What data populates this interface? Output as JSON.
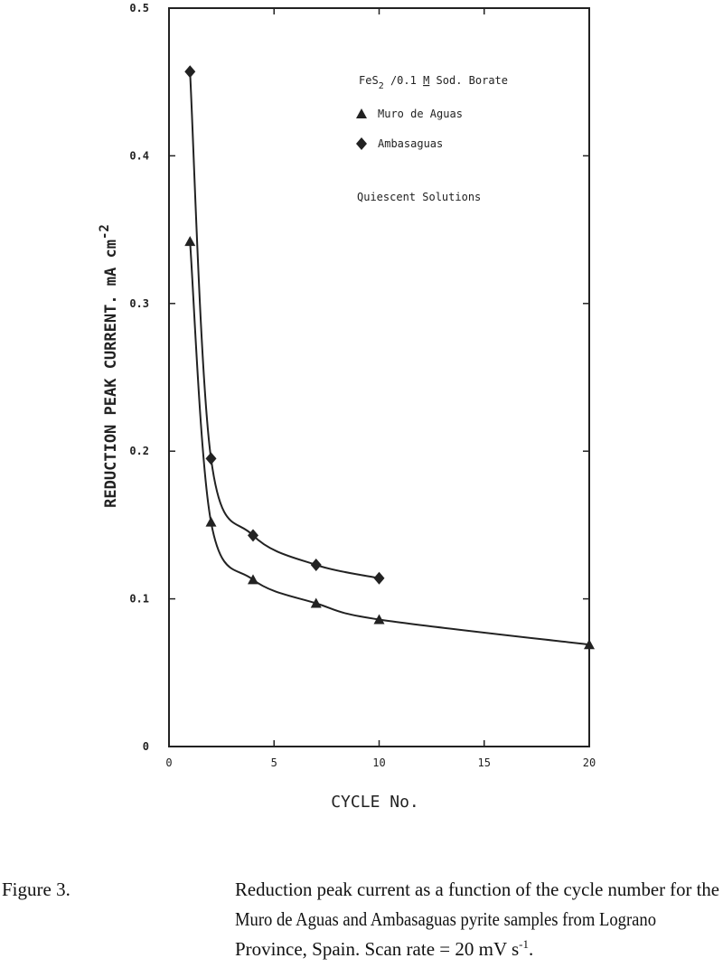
{
  "chart_data": {
    "type": "line",
    "x_label": "CYCLE No.",
    "y_label": "REDUCTION PEAK CURRENT. mA cm",
    "y_label_superscript": "-2",
    "legend_title_parts": [
      "FeS",
      "2",
      " /0.1 ",
      "M",
      " Sod. Borate"
    ],
    "annotation": "Quiescent Solutions",
    "xlim": [
      0,
      20
    ],
    "ylim": [
      0,
      0.5
    ],
    "xticks": [
      0,
      5,
      10,
      15,
      20
    ],
    "yticks": [
      0,
      0.1,
      0.2,
      0.3,
      0.4,
      0.5
    ],
    "series": [
      {
        "name": "Muro de Aguas",
        "marker": "triangle",
        "color": "#222222",
        "x": [
          1,
          2,
          4,
          7,
          10,
          20
        ],
        "values": [
          0.342,
          0.152,
          0.113,
          0.097,
          0.086,
          0.069
        ]
      },
      {
        "name": "Ambasaguas",
        "marker": "diamond",
        "color": "#222222",
        "x": [
          1,
          2,
          4,
          7,
          10
        ],
        "values": [
          0.457,
          0.195,
          0.143,
          0.123,
          0.114
        ]
      }
    ],
    "caption_label": "Figure 3.",
    "caption_lines": [
      "Reduction peak current as a function of the cycle number for the",
      "Muro de Aguas and Ambasaguas pyrite samples from Lograno",
      "Province, Spain.  Scan rate = 20 mV s"
    ],
    "caption_superscript": "-1",
    "caption_end": "."
  }
}
